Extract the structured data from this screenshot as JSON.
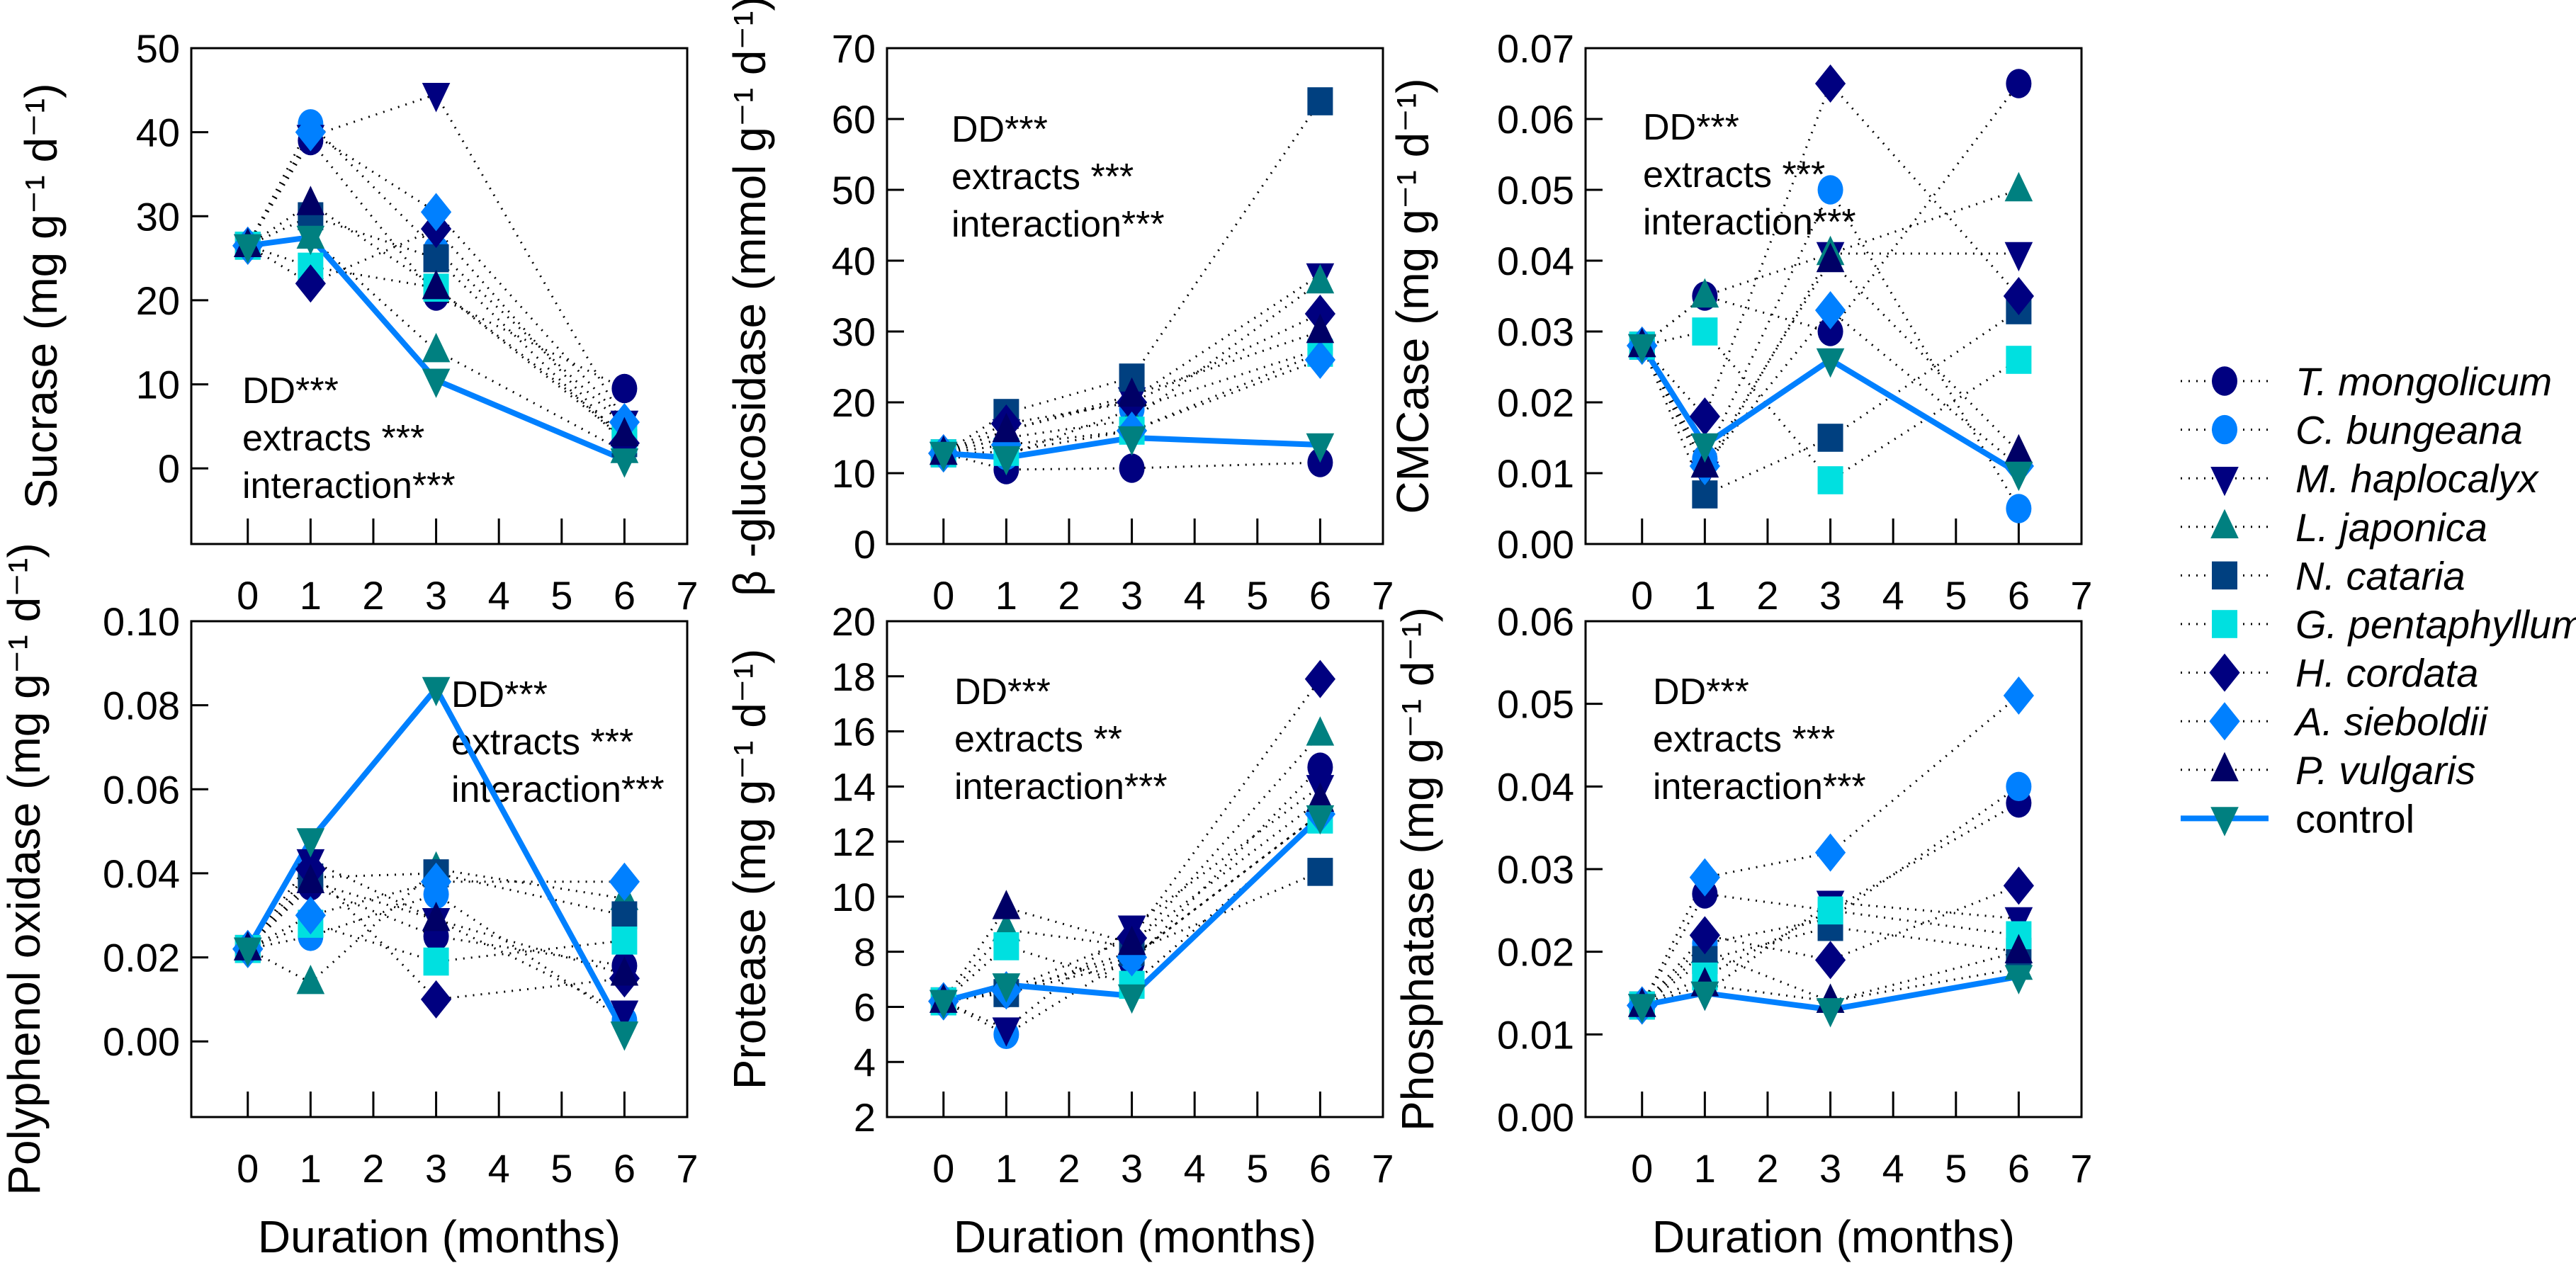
{
  "legend": {
    "items": [
      {
        "name": "T. mongolicum",
        "marker": "circle",
        "color": "#000080"
      },
      {
        "name": "C. bungeana",
        "marker": "circle",
        "color": "#0080FF"
      },
      {
        "name": "M. haplocalyx",
        "marker": "triangle-down",
        "color": "#000080"
      },
      {
        "name": "L. japonica",
        "marker": "triangle-up",
        "color": "#008080"
      },
      {
        "name": "N. cataria",
        "marker": "square",
        "color": "#004080"
      },
      {
        "name": "G. pentaphyllum",
        "marker": "square",
        "color": "#00E0E0"
      },
      {
        "name": "H. cordata",
        "marker": "diamond",
        "color": "#000080"
      },
      {
        "name": "A. sieboldii",
        "marker": "diamond",
        "color": "#0080FF"
      },
      {
        "name": "P. vulgaris",
        "marker": "triangle-up",
        "color": "#000066"
      },
      {
        "name": "control",
        "marker": "triangle-down",
        "color": "#008080",
        "line_color": "#0080FF"
      }
    ]
  },
  "chart_data": [
    {
      "type": "line",
      "title": "",
      "ylabel": "Sucrase (mg g⁻¹ d⁻¹)",
      "xlabel": "",
      "x": [
        0,
        1,
        3,
        6
      ],
      "xlim": [
        -0.9,
        7
      ],
      "xticks": [
        "0",
        "1",
        "2",
        "3",
        "4",
        "5",
        "6",
        "7"
      ],
      "ylim": [
        -9,
        50
      ],
      "yticks": [
        "0",
        "10",
        "20",
        "30",
        "40",
        "50"
      ],
      "ytick_values": [
        0,
        10,
        20,
        30,
        40,
        50
      ],
      "annotations": [
        "DD***",
        "extracts ***",
        "interaction***"
      ],
      "series": [
        {
          "name": "T. mongolicum",
          "values": [
            26.5,
            39,
            20.5,
            9.5
          ]
        },
        {
          "name": "C. bungeana",
          "values": [
            26.5,
            41,
            26,
            5
          ]
        },
        {
          "name": "M. haplocalyx",
          "values": [
            26.5,
            39.5,
            44.5,
            5.5
          ]
        },
        {
          "name": "L. japonica",
          "values": [
            26.5,
            27.5,
            14,
            2
          ]
        },
        {
          "name": "N. cataria",
          "values": [
            26.5,
            30,
            25,
            3
          ]
        },
        {
          "name": "G. pentaphyllum",
          "values": [
            26.5,
            24,
            21.5,
            3.5
          ]
        },
        {
          "name": "H. cordata",
          "values": [
            26.5,
            22,
            28.5,
            3
          ]
        },
        {
          "name": "A. sieboldii",
          "values": [
            26.5,
            40,
            30.5,
            5.5
          ]
        },
        {
          "name": "P. vulgaris",
          "values": [
            26.5,
            31.5,
            21.5,
            4
          ]
        },
        {
          "name": "control",
          "values": [
            26.5,
            27.5,
            10.5,
            1
          ]
        }
      ]
    },
    {
      "type": "line",
      "title": "",
      "ylabel": "β -glucosidase (mmol g⁻¹ d⁻¹)",
      "xlabel": "",
      "x": [
        0,
        1,
        3,
        6
      ],
      "xlim": [
        -0.9,
        7
      ],
      "xticks": [
        "0",
        "1",
        "2",
        "3",
        "4",
        "5",
        "6",
        "7"
      ],
      "ylim": [
        0,
        70
      ],
      "yticks": [
        "0",
        "10",
        "20",
        "30",
        "40",
        "50",
        "60",
        "70"
      ],
      "ytick_values": [
        0,
        10,
        20,
        30,
        40,
        50,
        60,
        70
      ],
      "annotations": [
        "DD***",
        "extracts ***",
        "interaction***"
      ],
      "series": [
        {
          "name": "T. mongolicum",
          "values": [
            12.8,
            10.5,
            10.7,
            11.5
          ]
        },
        {
          "name": "C. bungeana",
          "values": [
            12.8,
            12.5,
            19,
            27.5
          ]
        },
        {
          "name": "M. haplocalyx",
          "values": [
            12.8,
            16,
            20.5,
            38
          ]
        },
        {
          "name": "L. japonica",
          "values": [
            12.8,
            15,
            17.5,
            37
          ]
        },
        {
          "name": "N. cataria",
          "values": [
            12.8,
            18.5,
            23.5,
            62.5
          ]
        },
        {
          "name": "G. pentaphyllum",
          "values": [
            12.8,
            13,
            16,
            27
          ]
        },
        {
          "name": "H. cordata",
          "values": [
            12.8,
            17,
            20,
            32.5
          ]
        },
        {
          "name": "A. sieboldii",
          "values": [
            12.8,
            14,
            16,
            26
          ]
        },
        {
          "name": "P. vulgaris",
          "values": [
            12.8,
            16,
            21,
            30
          ]
        },
        {
          "name": "control",
          "values": [
            12.8,
            12.2,
            15,
            14
          ]
        }
      ]
    },
    {
      "type": "line",
      "title": "",
      "ylabel": "CMCase (mg g⁻¹ d⁻¹)",
      "xlabel": "",
      "x": [
        0,
        1,
        3,
        6
      ],
      "xlim": [
        -0.9,
        7
      ],
      "xticks": [
        "0",
        "1",
        "2",
        "3",
        "4",
        "5",
        "6",
        "7"
      ],
      "ylim": [
        0,
        0.07
      ],
      "yticks": [
        "0.00",
        "0.01",
        "0.02",
        "0.03",
        "0.04",
        "0.05",
        "0.06",
        "0.07"
      ],
      "ytick_values": [
        0,
        0.01,
        0.02,
        0.03,
        0.04,
        0.05,
        0.06,
        0.07
      ],
      "annotations": [
        "DD***",
        "extracts ***",
        "interaction***"
      ],
      "series": [
        {
          "name": "T. mongolicum",
          "values": [
            0.028,
            0.035,
            0.03,
            0.065
          ]
        },
        {
          "name": "C. bungeana",
          "values": [
            0.028,
            0.012,
            0.05,
            0.005
          ]
        },
        {
          "name": "M. haplocalyx",
          "values": [
            0.028,
            0.01,
            0.041,
            0.041
          ]
        },
        {
          "name": "L. japonica",
          "values": [
            0.028,
            0.035,
            0.041,
            0.05
          ]
        },
        {
          "name": "N. cataria",
          "values": [
            0.028,
            0.007,
            0.015,
            0.033
          ]
        },
        {
          "name": "G. pentaphyllum",
          "values": [
            0.028,
            0.03,
            0.009,
            0.026
          ]
        },
        {
          "name": "H. cordata",
          "values": [
            0.028,
            0.018,
            0.065,
            0.035
          ]
        },
        {
          "name": "A. sieboldii",
          "values": [
            0.028,
            0.011,
            0.033,
            0.011
          ]
        },
        {
          "name": "P. vulgaris",
          "values": [
            0.028,
            0.011,
            0.04,
            0.013
          ]
        },
        {
          "name": "control",
          "values": [
            0.028,
            0.014,
            0.026,
            0.01
          ]
        }
      ]
    },
    {
      "type": "line",
      "title": "",
      "ylabel": "Polyphenol oxidase (mg g⁻¹ d⁻¹)",
      "xlabel": "Duration (months)",
      "x": [
        0,
        1,
        3,
        6
      ],
      "xlim": [
        -0.9,
        7
      ],
      "xticks": [
        "0",
        "1",
        "2",
        "3",
        "4",
        "5",
        "6",
        "7"
      ],
      "ylim": [
        -0.018,
        0.1
      ],
      "yticks": [
        "0.00",
        "0.02",
        "0.04",
        "0.06",
        "0.08",
        "0.10"
      ],
      "ytick_values": [
        0,
        0.02,
        0.04,
        0.06,
        0.08,
        0.1
      ],
      "annotations": [
        "DD***",
        "extracts ***",
        "interaction***"
      ],
      "series": [
        {
          "name": "T. mongolicum",
          "values": [
            0.022,
            0.037,
            0.025,
            0.018
          ]
        },
        {
          "name": "C. bungeana",
          "values": [
            0.022,
            0.025,
            0.035,
            0.005
          ]
        },
        {
          "name": "M. haplocalyx",
          "values": [
            0.022,
            0.043,
            0.029,
            0.007
          ]
        },
        {
          "name": "L. japonica",
          "values": [
            0.022,
            0.014,
            0.041,
            0.034
          ]
        },
        {
          "name": "N. cataria",
          "values": [
            0.022,
            0.039,
            0.04,
            0.03
          ]
        },
        {
          "name": "G. pentaphyllum",
          "values": [
            0.022,
            0.028,
            0.019,
            0.024
          ]
        },
        {
          "name": "H. cordata",
          "values": [
            0.022,
            0.041,
            0.01,
            0.015
          ]
        },
        {
          "name": "A. sieboldii",
          "values": [
            0.022,
            0.03,
            0.038,
            0.038
          ]
        },
        {
          "name": "P. vulgaris",
          "values": [
            0.022,
            0.038,
            0.029,
            0.016
          ]
        },
        {
          "name": "control",
          "values": [
            0.022,
            0.048,
            0.084,
            0.002
          ]
        }
      ]
    },
    {
      "type": "line",
      "title": "",
      "ylabel": "Protease (mg g⁻¹ d⁻¹)",
      "xlabel": "Duration (months)",
      "x": [
        0,
        1,
        3,
        6
      ],
      "xlim": [
        -0.9,
        7
      ],
      "xticks": [
        "0",
        "1",
        "2",
        "3",
        "4",
        "5",
        "6",
        "7"
      ],
      "ylim": [
        2,
        20
      ],
      "yticks": [
        "2",
        "4",
        "6",
        "8",
        "10",
        "12",
        "14",
        "16",
        "18",
        "20"
      ],
      "ytick_values": [
        2,
        4,
        6,
        8,
        10,
        12,
        14,
        16,
        18,
        20
      ],
      "annotations": [
        "DD***",
        "extracts **",
        "interaction***"
      ],
      "series": [
        {
          "name": "T. mongolicum",
          "values": [
            6.2,
            6.5,
            7.6,
            14.7
          ]
        },
        {
          "name": "C. bungeana",
          "values": [
            6.2,
            5.0,
            7.8,
            13.0
          ]
        },
        {
          "name": "M. haplocalyx",
          "values": [
            6.2,
            5.2,
            8.9,
            14.0
          ]
        },
        {
          "name": "L. japonica",
          "values": [
            6.2,
            8.8,
            8.2,
            15.9
          ]
        },
        {
          "name": "N. cataria",
          "values": [
            6.2,
            6.5,
            8.0,
            10.9
          ]
        },
        {
          "name": "G. pentaphyllum",
          "values": [
            6.2,
            8.2,
            6.8,
            12.8
          ]
        },
        {
          "name": "H. cordata",
          "values": [
            6.2,
            6.6,
            8.5,
            17.9
          ]
        },
        {
          "name": "A. sieboldii",
          "values": [
            6.2,
            6.6,
            7.8,
            13.0
          ]
        },
        {
          "name": "P. vulgaris",
          "values": [
            6.2,
            9.6,
            8.3,
            13.5
          ]
        },
        {
          "name": "control",
          "values": [
            6.2,
            6.8,
            6.4,
            12.9
          ]
        }
      ]
    },
    {
      "type": "line",
      "title": "",
      "ylabel": "Phosphatase (mg g⁻¹ d⁻¹)",
      "xlabel": "Duration (months)",
      "x": [
        0,
        1,
        3,
        6
      ],
      "xlim": [
        -0.9,
        7
      ],
      "xticks": [
        "0",
        "1",
        "2",
        "3",
        "4",
        "5",
        "6",
        "7"
      ],
      "ylim": [
        0,
        0.06
      ],
      "yticks": [
        "0.00",
        "0.01",
        "0.02",
        "0.03",
        "0.04",
        "0.05",
        "0.06"
      ],
      "ytick_values": [
        0,
        0.01,
        0.02,
        0.03,
        0.04,
        0.05,
        0.06
      ],
      "annotations": [
        "DD***",
        "extracts ***",
        "interaction***"
      ],
      "series": [
        {
          "name": "T. mongolicum",
          "values": [
            0.0135,
            0.027,
            0.025,
            0.038
          ]
        },
        {
          "name": "C. bungeana",
          "values": [
            0.0135,
            0.021,
            0.024,
            0.04
          ]
        },
        {
          "name": "M. haplocalyx",
          "values": [
            0.0135,
            0.015,
            0.026,
            0.024
          ]
        },
        {
          "name": "L. japonica",
          "values": [
            0.0135,
            0.02,
            0.014,
            0.018
          ]
        },
        {
          "name": "N. cataria",
          "values": [
            0.0135,
            0.019,
            0.023,
            0.02
          ]
        },
        {
          "name": "G. pentaphyllum",
          "values": [
            0.0135,
            0.017,
            0.025,
            0.022
          ]
        },
        {
          "name": "H. cordata",
          "values": [
            0.0135,
            0.022,
            0.019,
            0.028
          ]
        },
        {
          "name": "A. sieboldii",
          "values": [
            0.0135,
            0.029,
            0.032,
            0.051
          ]
        },
        {
          "name": "P. vulgaris",
          "values": [
            0.0135,
            0.016,
            0.014,
            0.02
          ]
        },
        {
          "name": "control",
          "values": [
            0.0135,
            0.015,
            0.013,
            0.017
          ]
        }
      ]
    }
  ]
}
